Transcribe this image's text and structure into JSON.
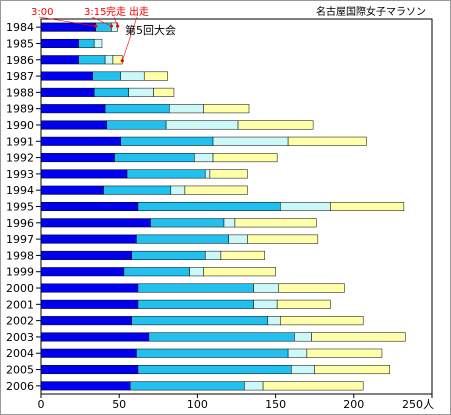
{
  "chart_data": {
    "type": "bar",
    "orientation": "horizontal",
    "stacked": true,
    "title": "名古屋国際女子マラソン",
    "subtitle": "第5回大会",
    "categories": [
      "1984",
      "1985",
      "1986",
      "1987",
      "1988",
      "1989",
      "1990",
      "1991",
      "1992",
      "1993",
      "1994",
      "1995",
      "1996",
      "1997",
      "1998",
      "1999",
      "2000",
      "2001",
      "2002",
      "2003",
      "2004",
      "2005",
      "2006"
    ],
    "series": [
      {
        "name": "3:00",
        "color": "#0000ee",
        "label_color": "#ff0000",
        "values": [
          35,
          24,
          24,
          33,
          34,
          41,
          42,
          51,
          47,
          55,
          40,
          62,
          70,
          61,
          58,
          53,
          62,
          62,
          58,
          69,
          61,
          62,
          57
        ]
      },
      {
        "name": "3:15",
        "color": "#22c0ee",
        "label_color": "#ff0000",
        "values": [
          10,
          10,
          17,
          18,
          22,
          41,
          38,
          59,
          51,
          50,
          43,
          91,
          47,
          59,
          47,
          42,
          74,
          74,
          87,
          93,
          97,
          98,
          73
        ]
      },
      {
        "name": "完走",
        "color": "#ccf8f8",
        "label_color": "#ff0000",
        "values": [
          4,
          5,
          5,
          15,
          16,
          22,
          46,
          48,
          12,
          3,
          9,
          32,
          7,
          12,
          10,
          9,
          16,
          15,
          8,
          11,
          12,
          15,
          12
        ]
      },
      {
        "name": "出走",
        "color": "#ffffaa",
        "label_color": "#ff0000",
        "values": [
          0,
          0,
          6,
          15,
          13,
          29,
          48,
          50,
          41,
          24,
          40,
          47,
          52,
          45,
          28,
          46,
          42,
          34,
          53,
          60,
          48,
          48,
          64
        ]
      }
    ],
    "totals": [
      49,
      39,
      52,
      81,
      85,
      133,
      174,
      208,
      151,
      132,
      132,
      232,
      176,
      177,
      143,
      150,
      194,
      185,
      206,
      233,
      218,
      223,
      206
    ],
    "xlim": [
      0,
      250
    ],
    "xticks": [
      "0",
      "50",
      "100",
      "150",
      "200",
      "250人"
    ],
    "grid": false,
    "legend": "top-left, labels placed above the first bar"
  }
}
